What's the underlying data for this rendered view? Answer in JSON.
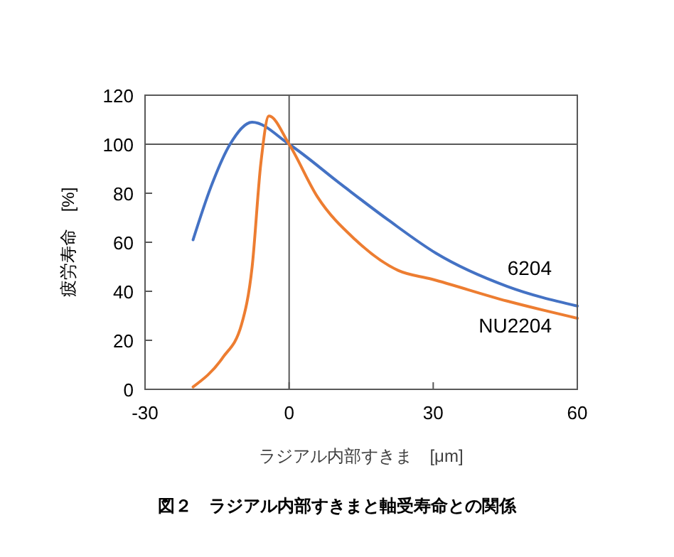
{
  "chart_data": {
    "type": "line",
    "title": "図２　ラジアル内部すきまと軸受寿命との関係",
    "xlabel": "ラジアル内部すきま　[μm]",
    "ylabel": "疲労寿命　[%]",
    "xlim": [
      -30,
      60
    ],
    "xticks": [
      -30,
      0,
      30,
      60
    ],
    "ylim": [
      0,
      120
    ],
    "yticks": [
      0,
      20,
      40,
      60,
      80,
      100,
      120
    ],
    "grid": false,
    "marker": "none",
    "line_style": "solid",
    "ref_lines": [
      {
        "axis": "x",
        "value": 0,
        "color": "#595959"
      },
      {
        "axis": "y",
        "value": 100,
        "color": "#595959"
      }
    ],
    "series": [
      {
        "name": "6204",
        "color": "#4472c4",
        "x": [
          -20,
          -16.3,
          -12.3,
          -7.7,
          0,
          10.9,
          20.7,
          30.6,
          45.4,
          60
        ],
        "values": [
          61,
          82.5,
          100,
          109,
          100,
          83.5,
          69,
          55.5,
          42,
          34
        ]
      },
      {
        "name": "NU2204",
        "color": "#ed7d31",
        "x": [
          -20,
          -13.8,
          -9.9,
          -7.7,
          -5.9,
          -4.2,
          0,
          5.9,
          13.8,
          22.7,
          29.6,
          45.4,
          60
        ],
        "values": [
          1,
          13,
          26.5,
          50,
          92,
          111.5,
          100,
          78.5,
          61,
          48.5,
          45,
          36,
          29
        ]
      }
    ]
  }
}
